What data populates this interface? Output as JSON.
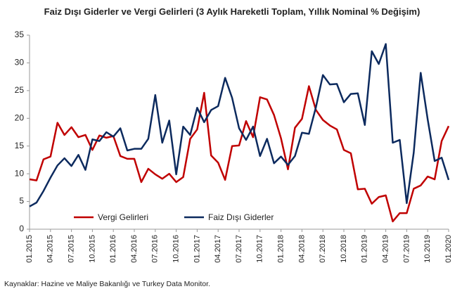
{
  "chart_data": {
    "type": "line",
    "title": "Faiz Dışı Giderler ve Vergi Gelirleri (3 Aylık Hareketli Toplam, Yıllık Nominal % Değişim)",
    "source": "Kaynaklar: Hazine ve Maliye Bakanlığı ve Turkey Data Monitor.",
    "categories": [
      "01.2015",
      null,
      null,
      "04.2015",
      null,
      null,
      "07.2015",
      null,
      null,
      "10.2015",
      null,
      null,
      "01.2016",
      null,
      null,
      "04.2016",
      null,
      null,
      "07.2016",
      null,
      null,
      "10.2016",
      null,
      null,
      "01.2017",
      null,
      null,
      "04.2017",
      null,
      null,
      "07.2017",
      null,
      null,
      "10.2017",
      null,
      null,
      "01.2018",
      null,
      null,
      "04.2018",
      null,
      null,
      "07.2018",
      null,
      null,
      "10.2018",
      null,
      null,
      "01.2019",
      null,
      null,
      "04.2019",
      null,
      null,
      "07.2019",
      null,
      null,
      "10.2019",
      null,
      null,
      "01.2020"
    ],
    "series": [
      {
        "name": "Vergi Gelirleri",
        "color": "#c00000",
        "values": [
          9.0,
          8.8,
          12.6,
          13.1,
          19.2,
          17.0,
          18.4,
          16.6,
          17.0,
          14.3,
          16.9,
          16.5,
          16.8,
          13.2,
          12.7,
          12.7,
          8.5,
          10.9,
          9.9,
          9.1,
          10.0,
          8.5,
          9.4,
          16.3,
          18.0,
          24.6,
          13.3,
          12.0,
          8.9,
          15.0,
          15.1,
          19.5,
          16.6,
          23.8,
          23.4,
          20.6,
          16.4,
          10.8,
          18.3,
          19.9,
          25.8,
          21.5,
          19.7,
          18.7,
          18.0,
          14.3,
          13.7,
          7.2,
          7.3,
          4.6,
          5.8,
          6.1,
          1.4,
          2.9,
          2.9,
          7.3,
          7.9,
          9.5,
          9.0,
          15.9,
          18.6
        ]
      },
      {
        "name": "Faiz Dışı Giderler",
        "color": "#0c2a5e",
        "values": [
          4.1,
          4.8,
          6.9,
          9.3,
          11.5,
          12.8,
          11.4,
          13.4,
          10.7,
          16.2,
          15.9,
          17.5,
          16.7,
          18.2,
          14.2,
          14.5,
          14.5,
          16.3,
          24.2,
          15.6,
          19.6,
          9.9,
          18.5,
          17.0,
          21.9,
          19.3,
          21.5,
          22.2,
          27.3,
          23.7,
          18.2,
          16.1,
          18.5,
          13.2,
          16.3,
          11.9,
          13.1,
          11.6,
          13.2,
          17.4,
          17.2,
          22.0,
          27.8,
          26.1,
          26.2,
          22.9,
          24.4,
          24.5,
          18.8,
          32.1,
          29.8,
          33.4,
          15.6,
          16.1,
          4.7,
          13.8,
          28.2,
          19.8,
          12.3,
          12.9,
          8.9
        ]
      }
    ],
    "ylim": [
      0,
      35
    ],
    "yticks": [
      0,
      5,
      10,
      15,
      20,
      25,
      30,
      35
    ],
    "grid": false
  }
}
